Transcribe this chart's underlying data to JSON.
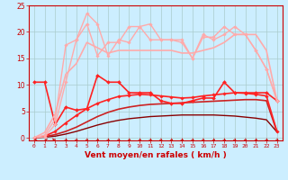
{
  "x": [
    0,
    1,
    2,
    3,
    4,
    5,
    6,
    7,
    8,
    9,
    10,
    11,
    12,
    13,
    14,
    15,
    16,
    17,
    18,
    19,
    20,
    21,
    22,
    23
  ],
  "background_color": "#cceeff",
  "grid_color": "#aacccc",
  "xlabel": "Vent moyen/en rafales ( km/h )",
  "xlabel_color": "#cc0000",
  "xlabel_fontsize": 6.5,
  "tick_color": "#cc0000",
  "ylim": [
    -0.5,
    25
  ],
  "xlim": [
    -0.5,
    23.5
  ],
  "yticks": [
    0,
    5,
    10,
    15,
    20,
    25
  ],
  "series": [
    {
      "name": "dark_smooth1",
      "values": [
        0.0,
        0.1,
        0.3,
        0.7,
        1.2,
        1.8,
        2.4,
        2.9,
        3.3,
        3.6,
        3.8,
        4.0,
        4.1,
        4.2,
        4.3,
        4.3,
        4.3,
        4.3,
        4.2,
        4.1,
        3.9,
        3.7,
        3.4,
        1.1
      ],
      "color": "#880000",
      "lw": 1.0,
      "marker": null
    },
    {
      "name": "dark_smooth2",
      "values": [
        0.0,
        0.2,
        0.6,
        1.2,
        2.0,
        3.0,
        4.0,
        4.8,
        5.4,
        5.8,
        6.1,
        6.3,
        6.4,
        6.5,
        6.6,
        6.7,
        6.8,
        6.9,
        7.0,
        7.1,
        7.2,
        7.2,
        7.0,
        1.1
      ],
      "color": "#cc2222",
      "lw": 1.2,
      "marker": null
    },
    {
      "name": "medium_marker",
      "values": [
        0.0,
        0.3,
        1.2,
        2.8,
        4.2,
        5.5,
        6.5,
        7.2,
        7.8,
        8.0,
        8.2,
        8.1,
        7.9,
        7.7,
        7.5,
        7.6,
        7.9,
        8.1,
        8.3,
        8.5,
        8.4,
        8.2,
        7.9,
        1.2
      ],
      "color": "#ff2222",
      "lw": 1.2,
      "marker": "D",
      "ms": 1.8
    },
    {
      "name": "jagged_marker",
      "values": [
        10.5,
        10.5,
        2.5,
        5.8,
        5.2,
        5.5,
        11.8,
        10.5,
        10.5,
        8.5,
        8.5,
        8.5,
        7.0,
        6.5,
        6.5,
        7.0,
        7.5,
        7.5,
        10.5,
        8.5,
        8.5,
        8.5,
        8.5,
        7.0
      ],
      "color": "#ff2222",
      "lw": 1.2,
      "marker": "D",
      "ms": 2.0
    },
    {
      "name": "light_jagged1",
      "values": [
        0.0,
        0.2,
        2.5,
        10.5,
        18.5,
        21.5,
        15.5,
        18.0,
        18.0,
        21.0,
        21.0,
        18.5,
        18.5,
        18.5,
        18.5,
        15.0,
        19.0,
        19.0,
        21.0,
        19.5,
        19.5,
        16.5,
        13.0,
        7.0
      ],
      "color": "#ffaaaa",
      "lw": 1.0,
      "marker": "D",
      "ms": 1.8
    },
    {
      "name": "light_jagged2",
      "values": [
        0.0,
        0.5,
        3.5,
        17.5,
        18.5,
        23.5,
        21.5,
        15.5,
        18.5,
        18.0,
        21.0,
        21.5,
        18.5,
        18.5,
        18.0,
        15.0,
        19.5,
        18.5,
        19.5,
        21.0,
        19.5,
        16.5,
        13.0,
        7.0
      ],
      "color": "#ffaaaa",
      "lw": 1.0,
      "marker": "D",
      "ms": 1.8
    },
    {
      "name": "light_smooth",
      "values": [
        0.0,
        1.0,
        4.5,
        12.0,
        14.0,
        18.0,
        17.0,
        16.0,
        16.5,
        16.5,
        16.5,
        16.5,
        16.5,
        16.5,
        16.0,
        16.0,
        16.5,
        17.0,
        18.0,
        19.5,
        19.5,
        19.5,
        16.5,
        7.0
      ],
      "color": "#ffaaaa",
      "lw": 1.2,
      "marker": null
    }
  ],
  "arrow_color": "#cc0000",
  "arrow_angles": [
    260,
    280,
    90,
    135,
    140,
    140,
    135,
    135,
    135,
    135,
    135,
    135,
    135,
    135,
    135,
    135,
    135,
    135,
    135,
    140,
    140,
    135,
    135,
    135
  ]
}
